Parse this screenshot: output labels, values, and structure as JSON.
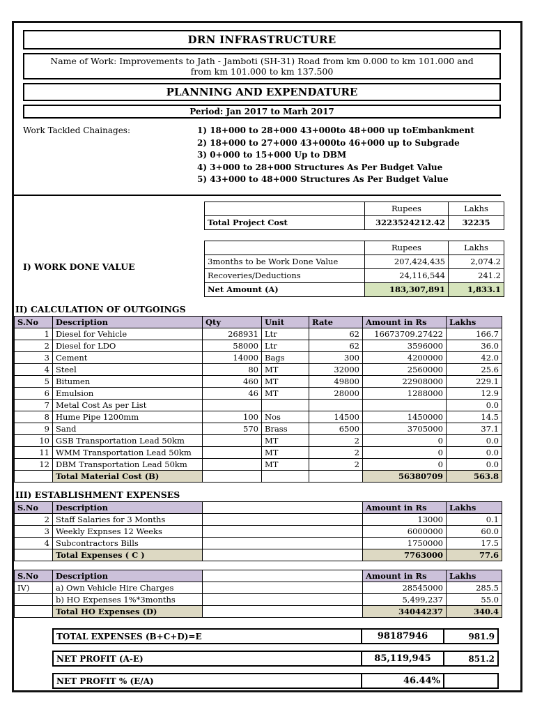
{
  "colors": {
    "header_bg": "#ccc1da",
    "total_bg": "#ddd9c3",
    "net_amount_bg": "#d6e4bc"
  },
  "header": {
    "company": "DRN INFRASTRUCTURE",
    "name_of_work_label": "Name of Work:",
    "name_of_work": "Improvements to Jath - Jamboti (SH-31) Road from km 0.000 to km 101.000 and from km 101.000 to km 137.500",
    "title": "PLANNING AND EXPENDATURE",
    "period": "Period: Jan 2017 to Marh 2017"
  },
  "chainages": {
    "label": "Work Tackled Chainages:",
    "items": [
      "1) 18+000 to 28+000 43+000to 48+000 up toEmbankment",
      "2) 18+000 to 27+000 43+000to 46+000 up to Subgrade",
      "3) 0+000 to 15+000 Up to DBM",
      "4) 3+000 to 28+000 Structures As Per Budget Value",
      "5) 43+000 to 48+000 Structures As Per Budget Value"
    ]
  },
  "project_cost": {
    "col_rupees": "Rupees",
    "col_lakhs": "Lakhs",
    "label": "Total Project Cost",
    "rupees": "3223524212.42",
    "lakhs": "32235"
  },
  "work_done": {
    "section_label": "I) WORK DONE VALUE",
    "col_rupees": "Rupees",
    "col_lakhs": "Lakhs",
    "rows": [
      {
        "label": "3months to be Work Done Value",
        "rupees": "207,424,435",
        "lakhs": "2,074.2"
      },
      {
        "label": "Recoveries/Deductions",
        "rupees": "24,116,544",
        "lakhs": "241.2"
      },
      {
        "label": "Net Amount (A)",
        "rupees": "183,307,891",
        "lakhs": "1,833.1"
      }
    ]
  },
  "outgoings": {
    "section_label": "II) CALCULATION OF OUTGOINGS",
    "headers": [
      "S.No",
      "Description",
      "Qty",
      "Unit",
      "Rate",
      "Amount in Rs",
      "Lakhs"
    ],
    "rows": [
      [
        "1",
        "Diesel for Vehicle",
        "268931",
        "Ltr",
        "62",
        "16673709.27422",
        "166.7"
      ],
      [
        "2",
        "Diesel for LDO",
        "58000",
        "Ltr",
        "62",
        "3596000",
        "36.0"
      ],
      [
        "3",
        "Cement",
        "14000",
        "Bags",
        "300",
        "4200000",
        "42.0"
      ],
      [
        "4",
        "Steel",
        "80",
        "MT",
        "32000",
        "2560000",
        "25.6"
      ],
      [
        "5",
        "Bitumen",
        "460",
        "MT",
        "49800",
        "22908000",
        "229.1"
      ],
      [
        "6",
        "Emulsion",
        "46",
        "MT",
        "28000",
        "1288000",
        "12.9"
      ],
      [
        "7",
        "Metal Cost As per List",
        "",
        "",
        "",
        "",
        "0.0"
      ],
      [
        "8",
        "Hume Pipe 1200mm",
        "100",
        "Nos",
        "14500",
        "1450000",
        "14.5"
      ],
      [
        "9",
        "Sand",
        "570",
        "Brass",
        "6500",
        "3705000",
        "37.1"
      ],
      [
        "10",
        "GSB Transportation Lead 50km",
        "",
        "MT",
        "2",
        "0",
        "0.0"
      ],
      [
        "11",
        "WMM Transportation Lead 50km",
        "",
        "MT",
        "2",
        "0",
        "0.0"
      ],
      [
        "12",
        "DBM Transportation Lead 50km",
        "",
        "MT",
        "2",
        "0",
        "0.0"
      ]
    ],
    "total": {
      "label": "Total Material Cost (B)",
      "amount": "56380709",
      "lakhs": "563.8"
    }
  },
  "establishment": {
    "section_label": "III) ESTABLISHMENT EXPENSES",
    "headers": [
      "S.No",
      "Description",
      "Amount in Rs",
      "Lakhs"
    ],
    "rows": [
      [
        "2",
        "Staff Salaries for 3 Months",
        "",
        "13000",
        "0.1"
      ],
      [
        "3",
        "Weekly Expnses 12 Weeks",
        "",
        "6000000",
        "60.0"
      ],
      [
        "4",
        "Subcontractors Bills",
        "",
        "1750000",
        "17.5"
      ]
    ],
    "total": {
      "label": "Total Expenses ( C )",
      "amount": "7763000",
      "lakhs": "77.6"
    }
  },
  "ho_expenses": {
    "headers": [
      "S.No",
      "Description",
      "Amount in Rs",
      "Lakhs"
    ],
    "rows": [
      [
        "IV)",
        "a) Own Vehicle Hire Charges",
        "",
        "28545000",
        "285.5"
      ],
      [
        "",
        "b) HO Expenses 1%*3months",
        "",
        "5,499,237",
        "55.0"
      ]
    ],
    "total": {
      "label": "Total HO Expenses (D)",
      "amount": "34044237",
      "lakhs": "340.4"
    }
  },
  "summary": {
    "rows": [
      {
        "label": "TOTAL EXPENSES (B+C+D)=E",
        "amount": "98187946",
        "lakhs": "981.9"
      },
      {
        "label": "NET PROFIT (A-E)",
        "amount": "85,119,945",
        "lakhs": "851.2"
      },
      {
        "label": "NET PROFIT % (E/A)",
        "amount": "46.44%",
        "lakhs": ""
      }
    ]
  }
}
